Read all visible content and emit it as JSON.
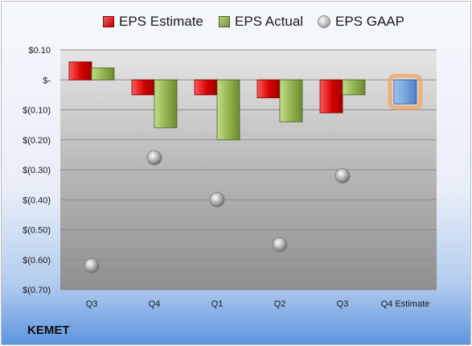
{
  "legend": {
    "estimate_label": "EPS Estimate",
    "actual_label": "EPS Actual",
    "gaap_label": "EPS GAAP"
  },
  "brand": "KEMET",
  "colors": {
    "estimate": "#c00000",
    "actual": "#77933c",
    "gaap": "#a6a6a6",
    "future_estimate": "#6f9fd8",
    "future_glow": "#f4a460"
  },
  "chart_data": {
    "type": "bar",
    "categories": [
      "Q3",
      "Q4",
      "Q1",
      "Q2",
      "Q3",
      "Q4 Estimate"
    ],
    "series": [
      {
        "name": "EPS Estimate",
        "values": [
          0.06,
          -0.05,
          -0.05,
          -0.06,
          -0.11,
          -0.08
        ]
      },
      {
        "name": "EPS Actual",
        "values": [
          0.04,
          -0.16,
          -0.2,
          -0.14,
          -0.05,
          null
        ]
      },
      {
        "name": "EPS GAAP",
        "values": [
          -0.62,
          -0.26,
          -0.4,
          -0.55,
          -0.32,
          null
        ]
      }
    ],
    "ylim": [
      -0.7,
      0.1
    ],
    "yticks": [
      {
        "value": 0.1,
        "label": "$0.10"
      },
      {
        "value": 0.0,
        "label": "$-"
      },
      {
        "value": -0.1,
        "label": "$(0.10)"
      },
      {
        "value": -0.2,
        "label": "$(0.20)"
      },
      {
        "value": -0.3,
        "label": "$(0.30)"
      },
      {
        "value": -0.4,
        "label": "$(0.40)"
      },
      {
        "value": -0.5,
        "label": "$(0.50)"
      },
      {
        "value": -0.6,
        "label": "$(0.60)"
      },
      {
        "value": -0.7,
        "label": "$(0.70)"
      }
    ],
    "grid": true,
    "legend_position": "top"
  }
}
